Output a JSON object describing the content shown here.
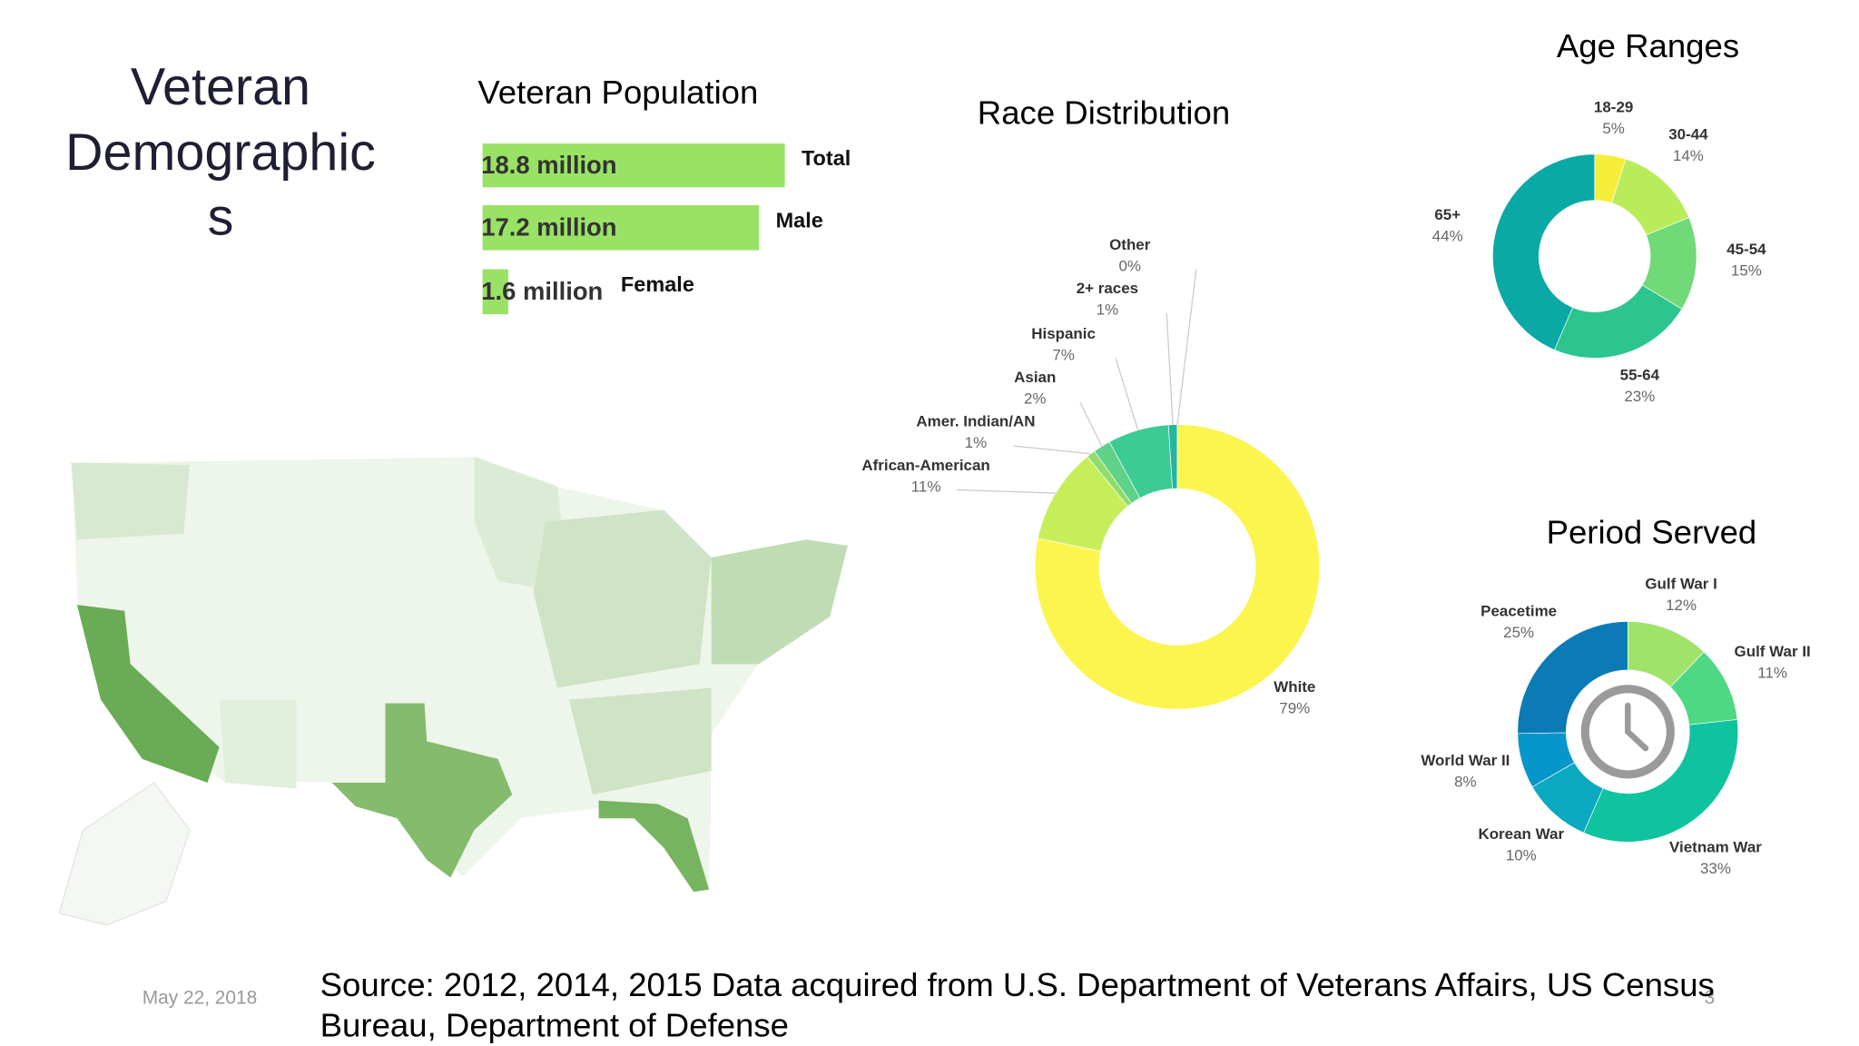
{
  "slide": {
    "title": "Veteran Demographics",
    "date": "May 22, 2018",
    "page_number": "3",
    "source": "Source: 2012, 2014, 2015  Data acquired from U.S. Department of Veterans Affairs, US Census Bureau, Department of Defense"
  },
  "chart_data": [
    {
      "type": "bar",
      "title": "Veteran Population",
      "categories": [
        "Total",
        "Male",
        "Female"
      ],
      "values": [
        18.8,
        17.2,
        1.6
      ],
      "value_labels": [
        "18.8 million",
        "17.2 million",
        "1.6 million"
      ],
      "color": "#99e265"
    },
    {
      "type": "donut",
      "title": "Race Distribution",
      "categories": [
        "White",
        "African-American",
        "Amer. Indian/AN",
        "Asian",
        "Hispanic",
        "2+ races",
        "Other"
      ],
      "values": [
        79,
        11,
        1,
        2,
        7,
        1,
        0
      ],
      "value_labels": [
        "79%",
        "11%",
        "1%",
        "2%",
        "7%",
        "1%",
        "0%"
      ],
      "colors": [
        "#fbf54e",
        "#c6ee5b",
        "#90dd6d",
        "#5fd188",
        "#3ccb95",
        "#22b6a0",
        "#10a0a0"
      ]
    },
    {
      "type": "donut",
      "title": "Age Ranges",
      "categories": [
        "18-29",
        "30-44",
        "45-54",
        "55-64",
        "65+"
      ],
      "values": [
        5,
        14,
        15,
        23,
        44
      ],
      "value_labels": [
        "5%",
        "14%",
        "15%",
        "23%",
        "44%"
      ],
      "colors": [
        "#f4ee3a",
        "#b9ec5a",
        "#6fda77",
        "#2cc58f",
        "#0ba9a5"
      ]
    },
    {
      "type": "donut",
      "title": "Period Served",
      "categories": [
        "Gulf War I",
        "Gulf War II",
        "Vietnam War",
        "Korean War",
        "World War II",
        "Peacetime"
      ],
      "values": [
        12,
        11,
        33,
        10,
        8,
        25
      ],
      "value_labels": [
        "12%",
        "11%",
        "33%",
        "10%",
        "8%",
        "25%"
      ],
      "colors": [
        "#9fe36a",
        "#4fd883",
        "#10c3a0",
        "#0aa9bf",
        "#0696c9",
        "#0c7bb5"
      ]
    }
  ]
}
